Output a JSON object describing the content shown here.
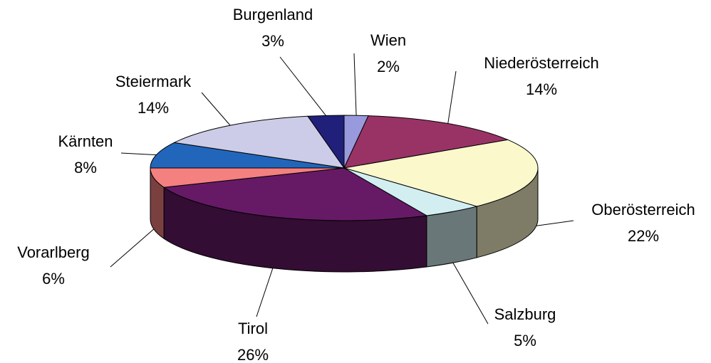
{
  "chart_data": {
    "type": "pie3d",
    "categories": [
      "Wien",
      "Niederösterreich",
      "Oberösterreich",
      "Salzburg",
      "Tirol",
      "Vorarlberg",
      "Kärnten",
      "Steiermark",
      "Burgenland"
    ],
    "values": [
      2,
      14,
      22,
      5,
      26,
      6,
      8,
      14,
      3
    ],
    "value_labels": [
      "2%",
      "14%",
      "22%",
      "5%",
      "26%",
      "6%",
      "8%",
      "14%",
      "3%"
    ],
    "colors": [
      "#9999dd",
      "#993366",
      "#fbf8cc",
      "#d2eef0",
      "#661a66",
      "#f48080",
      "#2266bb",
      "#cccce8",
      "#20207a"
    ]
  }
}
